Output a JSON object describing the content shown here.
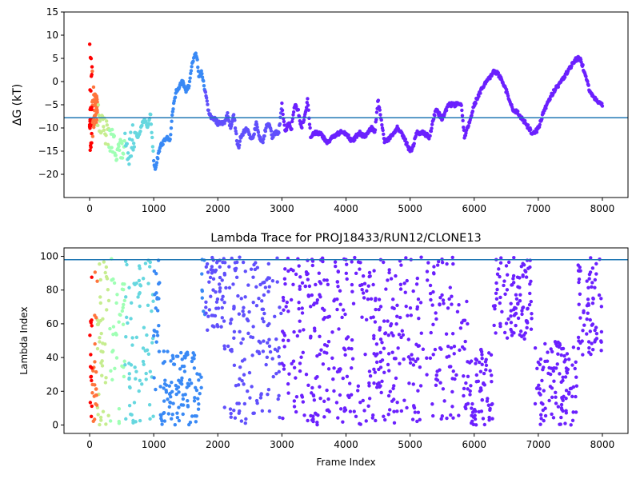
{
  "chart_data": [
    {
      "type": "scatter",
      "title": "",
      "xlabel": "",
      "ylabel": "ΔG (kT)",
      "xlim": [
        -400,
        8400
      ],
      "ylim": [
        -25,
        15
      ],
      "xticks": [
        0,
        1000,
        2000,
        3000,
        4000,
        5000,
        6000,
        7000,
        8000
      ],
      "yticks": [
        -20,
        -15,
        -10,
        -5,
        0,
        5,
        10,
        15
      ],
      "hline": -7.8,
      "hline_color": "#1f77b4",
      "series": [
        {
          "values_x": [
            0,
            100,
            200,
            300,
            400,
            500,
            550,
            600,
            650,
            700,
            750,
            800,
            850,
            900,
            950,
            1000,
            1025,
            1050,
            1100,
            1150,
            1200,
            1250,
            1300,
            1350,
            1400,
            1450,
            1500,
            1550,
            1600,
            1650,
            1680,
            1700,
            1750,
            1800,
            1850,
            1900,
            1950,
            2000,
            2050,
            2100,
            2150,
            2200,
            2250,
            2300,
            2330,
            2350,
            2400,
            2450,
            2500,
            2550,
            2600,
            2650,
            2700,
            2750,
            2800,
            2850,
            2900,
            2950,
            3000,
            3050,
            3100,
            3150,
            3200,
            3250,
            3300,
            3350,
            3400,
            3450,
            3500,
            3600,
            3700,
            3800,
            3900,
            4000,
            4100,
            4200,
            4300,
            4400,
            4450,
            4500,
            4600,
            4700,
            4800,
            4900,
            5000,
            5050,
            5100,
            5200,
            5300,
            5400,
            5500,
            5600,
            5700,
            5800,
            5850,
            5900,
            6000,
            6100,
            6200,
            6300,
            6350,
            6400,
            6500,
            6600,
            6700,
            6800,
            6900,
            6950,
            7000,
            7100,
            7200,
            7300,
            7400,
            7500,
            7600,
            7650,
            7700,
            7800,
            7900,
            8000
          ],
          "values_y": [
            -8,
            -6,
            -10,
            -12,
            -14,
            -15,
            -14,
            -17,
            -13,
            -11,
            -12,
            -10,
            -8,
            -10,
            -7,
            -17,
            -19,
            -17,
            -14,
            -13,
            -12,
            -13,
            -6,
            -2,
            -1,
            0,
            -2,
            -1,
            4,
            6,
            5,
            1,
            2,
            -2,
            -6,
            -8,
            -8,
            -9,
            -9,
            -9,
            -7,
            -10,
            -7,
            -13,
            -14,
            -12,
            -11,
            -10,
            -12,
            -12,
            -9,
            -12,
            -13,
            -10,
            -9,
            -12,
            -11,
            -11,
            -5,
            -11,
            -9,
            -10,
            -5,
            -6,
            -10,
            -8,
            -4,
            -12,
            -11,
            -11,
            -13,
            -12,
            -11,
            -11,
            -13,
            -11,
            -12,
            -10,
            -11,
            -4,
            -13,
            -12,
            -10,
            -12,
            -15,
            -14,
            -11,
            -11,
            -12,
            -6,
            -8,
            -5,
            -5,
            -5,
            -12,
            -10,
            -5,
            -2,
            0,
            2,
            2,
            1,
            -2,
            -6,
            -7,
            -9,
            -11,
            -11,
            -10,
            -6,
            -3,
            -1,
            1,
            3,
            5,
            5,
            3,
            -2,
            -4,
            -5
          ]
        }
      ]
    },
    {
      "type": "scatter",
      "title": "Lambda Trace for PROJ18433/RUN12/CLONE13",
      "xlabel": "Frame Index",
      "ylabel": "Lambda Index",
      "xlim": [
        -400,
        8400
      ],
      "ylim": [
        -5,
        105
      ],
      "xticks": [
        0,
        1000,
        2000,
        3000,
        4000,
        5000,
        6000,
        7000,
        8000
      ],
      "yticks": [
        0,
        20,
        40,
        60,
        80,
        100
      ],
      "hline": 98,
      "hline_color": "#1f77b4",
      "regions": [
        {
          "x": [
            0,
            200
          ],
          "y": [
            0,
            100
          ]
        },
        {
          "x": [
            200,
            1100
          ],
          "y": [
            0,
            100
          ]
        },
        {
          "x": [
            1100,
            1750
          ],
          "y": [
            0,
            45
          ]
        },
        {
          "x": [
            1750,
            2100
          ],
          "y": [
            55,
            100
          ]
        },
        {
          "x": [
            2100,
            5900
          ],
          "y": [
            0,
            100
          ]
        },
        {
          "x": [
            5900,
            6300
          ],
          "y": [
            0,
            45
          ]
        },
        {
          "x": [
            6300,
            6900
          ],
          "y": [
            50,
            100
          ]
        },
        {
          "x": [
            6950,
            7600
          ],
          "y": [
            0,
            50
          ]
        },
        {
          "x": [
            7600,
            8000
          ],
          "y": [
            40,
            100
          ]
        }
      ]
    }
  ]
}
